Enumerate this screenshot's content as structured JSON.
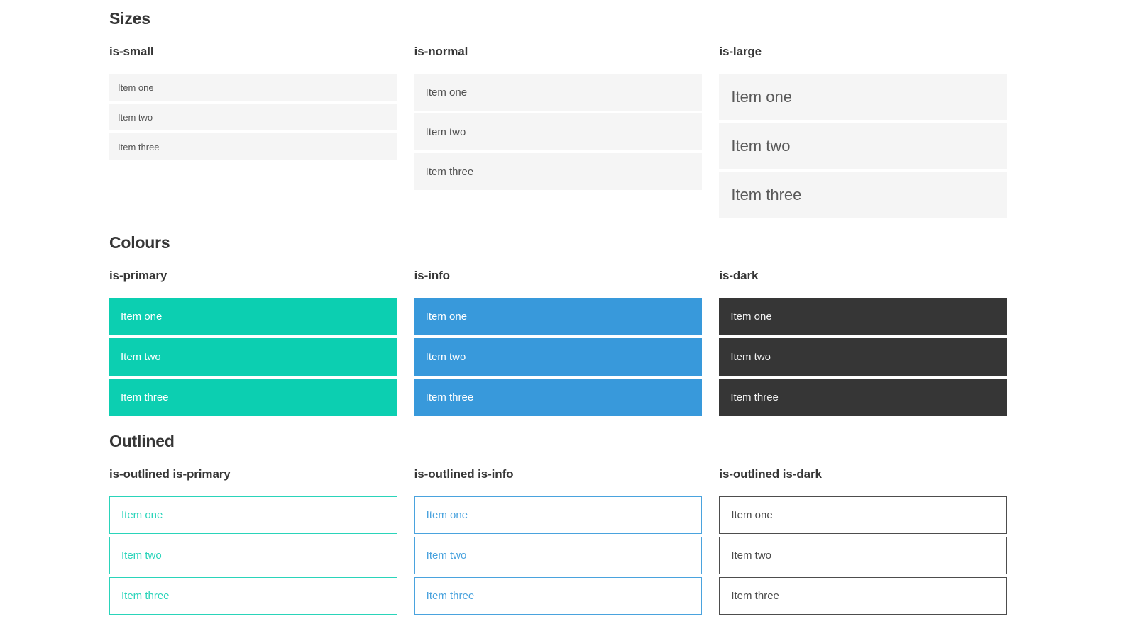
{
  "colors": {
    "primary": "#0ccfb1",
    "info": "#3899db",
    "dark": "#363636",
    "item_background": "#f5f5f5",
    "heading_text": "#363636",
    "item_text": "#515151"
  },
  "sections": [
    {
      "title": "Sizes",
      "groups": [
        {
          "label": "is-small",
          "items": [
            "Item one",
            "Item two",
            "Item three"
          ]
        },
        {
          "label": "is-normal",
          "items": [
            "Item one",
            "Item two",
            "Item three"
          ]
        },
        {
          "label": "is-large",
          "items": [
            "Item one",
            "Item two",
            "Item three"
          ]
        }
      ]
    },
    {
      "title": "Colours",
      "groups": [
        {
          "label": "is-primary",
          "items": [
            "Item one",
            "Item two",
            "Item three"
          ]
        },
        {
          "label": "is-info",
          "items": [
            "Item one",
            "Item two",
            "Item three"
          ]
        },
        {
          "label": "is-dark",
          "items": [
            "Item one",
            "Item two",
            "Item three"
          ]
        }
      ]
    },
    {
      "title": "Outlined",
      "groups": [
        {
          "label": "is-outlined is-primary",
          "items": [
            "Item one",
            "Item two",
            "Item three"
          ]
        },
        {
          "label": "is-outlined is-info",
          "items": [
            "Item one",
            "Item two",
            "Item three"
          ]
        },
        {
          "label": "is-outlined is-dark",
          "items": [
            "Item one",
            "Item two",
            "Item three"
          ]
        }
      ]
    }
  ]
}
